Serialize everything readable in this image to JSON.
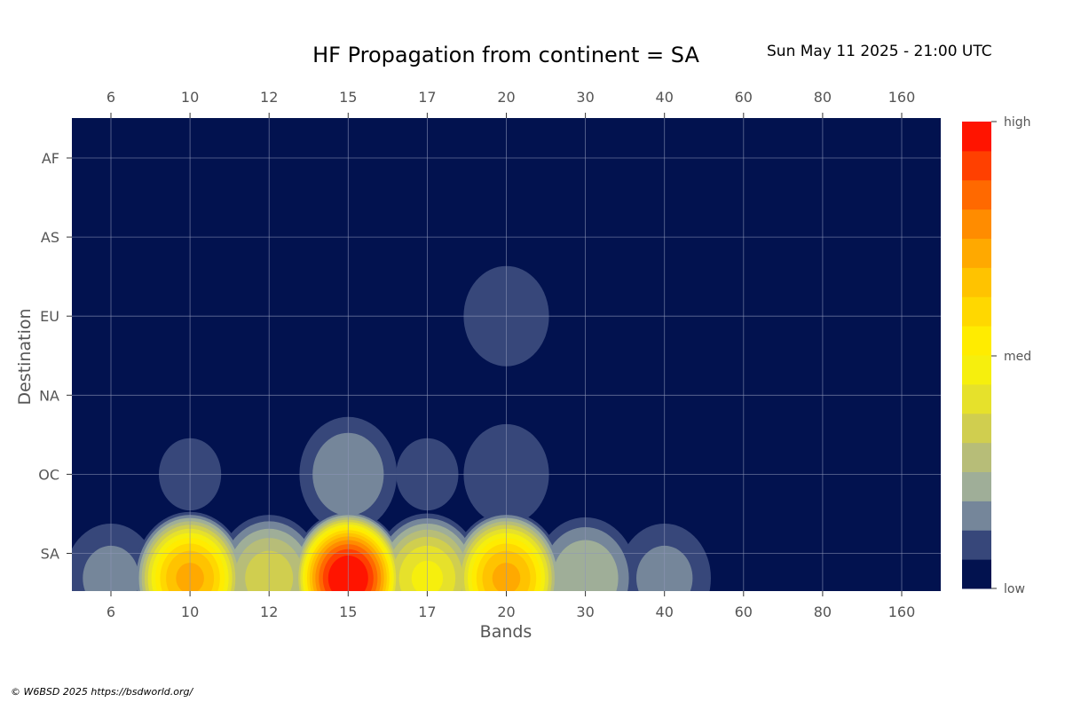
{
  "header": {
    "title": "HF Propagation from continent = SA",
    "timestamp": "Sun May 11 2025 - 21:00 UTC"
  },
  "footer": {
    "credit": "© W6BSD 2025 https://bsdworld.org/"
  },
  "colors": {
    "background": "#02124f",
    "grid": "#8e97b8",
    "palette": [
      "#02124f",
      "#37477a",
      "#75869a",
      "#9fae98",
      "#b7bd78",
      "#d0ce4f",
      "#e6e12b",
      "#f6ef0d",
      "#ffec00",
      "#ffd800",
      "#ffc300",
      "#ffa900",
      "#ff8c00",
      "#ff6900",
      "#ff4000",
      "#ff1400"
    ]
  },
  "chart_data": {
    "type": "heatmap",
    "title": "HF Propagation from continent = SA",
    "xlabel": "Bands",
    "ylabel": "Destination",
    "x_categories": [
      "6",
      "10",
      "12",
      "15",
      "17",
      "20",
      "30",
      "40",
      "60",
      "80",
      "160"
    ],
    "y_categories": [
      "AF",
      "AS",
      "EU",
      "NA",
      "OC",
      "SA"
    ],
    "values": [
      [
        0,
        0,
        0,
        0,
        0,
        0,
        0,
        0,
        0,
        0,
        0
      ],
      [
        0,
        0,
        0,
        0,
        0,
        0,
        0,
        0,
        0,
        0,
        0
      ],
      [
        0,
        0,
        0,
        0,
        0,
        0.12,
        0,
        0,
        0,
        0,
        0
      ],
      [
        0,
        0,
        0,
        0,
        0,
        0,
        0,
        0,
        0,
        0,
        0
      ],
      [
        0,
        0.08,
        0.05,
        0.18,
        0.08,
        0.12,
        0,
        0,
        0,
        0,
        0
      ],
      [
        0.15,
        0.7,
        0.35,
        1.0,
        0.45,
        0.7,
        0.25,
        0.15,
        0,
        0,
        0
      ]
    ],
    "colorbar": {
      "labels": [
        "high",
        "med",
        "low"
      ],
      "range": [
        0,
        1
      ]
    },
    "grid": true,
    "x_ticks_top": true
  }
}
